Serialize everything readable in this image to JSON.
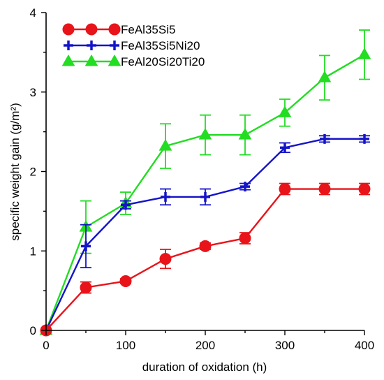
{
  "chart_data": {
    "type": "line",
    "xlabel": "duration of oxidation (h)",
    "ylabel": "specific weight gain (g/m²)",
    "xlim": [
      0,
      400
    ],
    "ylim": [
      0,
      4
    ],
    "xticks": [
      "0",
      "100",
      "200",
      "300",
      "400"
    ],
    "yticks": [
      "0",
      "1",
      "2",
      "3",
      "4"
    ],
    "legend_position": "top-left",
    "series": [
      {
        "name": "FeAl35Si5",
        "color": "#e8141a",
        "marker": "circle",
        "x": [
          0,
          50,
          100,
          150,
          200,
          250,
          300,
          350,
          400
        ],
        "y": [
          0,
          0.54,
          0.62,
          0.9,
          1.06,
          1.16,
          1.78,
          1.78,
          1.78
        ],
        "err": [
          0,
          0.07,
          0.03,
          0.12,
          0.04,
          0.07,
          0.07,
          0.07,
          0.07
        ]
      },
      {
        "name": "FeAl35Si5Ni20",
        "color": "#1414c8",
        "marker": "plus",
        "x": [
          0,
          50,
          100,
          150,
          200,
          250,
          300,
          350,
          400
        ],
        "y": [
          0,
          1.06,
          1.58,
          1.68,
          1.68,
          1.81,
          2.3,
          2.41,
          2.41
        ],
        "err": [
          0,
          0.27,
          0.05,
          0.1,
          0.1,
          0.04,
          0.06,
          0.04,
          0.04
        ]
      },
      {
        "name": "FeAl20Si20Ti20",
        "color": "#22dd22",
        "marker": "triangle",
        "x": [
          0,
          50,
          100,
          150,
          200,
          250,
          300,
          350,
          400
        ],
        "y": [
          0,
          1.3,
          1.6,
          2.32,
          2.46,
          2.46,
          2.74,
          3.18,
          3.47
        ],
        "err": [
          0,
          0.33,
          0.14,
          0.28,
          0.25,
          0.25,
          0.17,
          0.28,
          0.31
        ]
      }
    ]
  }
}
